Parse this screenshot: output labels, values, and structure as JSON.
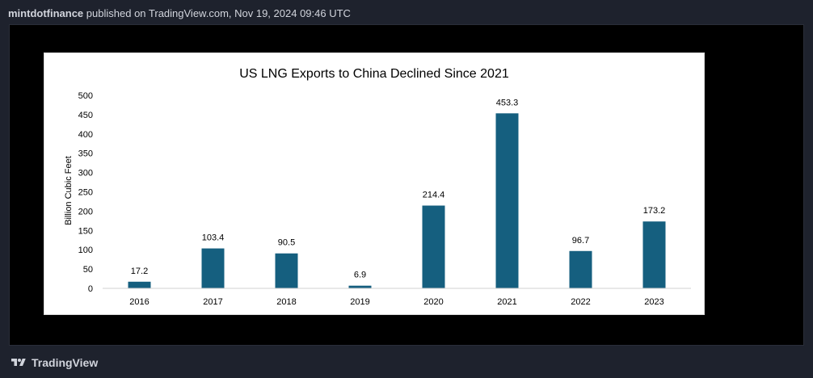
{
  "header": {
    "author": "mintdotfinance",
    "published_text": "published on TradingView.com, Nov 19, 2024 09:46 UTC"
  },
  "footer": {
    "brand": "TradingView",
    "logo_icon": "tradingview-logo-icon"
  },
  "chart_data": {
    "type": "bar",
    "title": "US LNG Exports to China Declined Since 2021",
    "xlabel": "",
    "ylabel": "Billion Cubic Feet",
    "categories": [
      "2016",
      "2017",
      "2018",
      "2019",
      "2020",
      "2021",
      "2022",
      "2023"
    ],
    "values": [
      17.2,
      103.4,
      90.5,
      6.9,
      214.4,
      453.3,
      96.7,
      173.2
    ],
    "data_labels": [
      "17.2",
      "103.4",
      "90.5",
      "6.9",
      "214.4",
      "453.3",
      "96.7",
      "173.2"
    ],
    "ylim": [
      0,
      500
    ],
    "yticks": [
      0,
      50,
      100,
      150,
      200,
      250,
      300,
      350,
      400,
      450,
      500
    ],
    "grid": false,
    "bar_color": "#155f7f",
    "legend": "none"
  }
}
